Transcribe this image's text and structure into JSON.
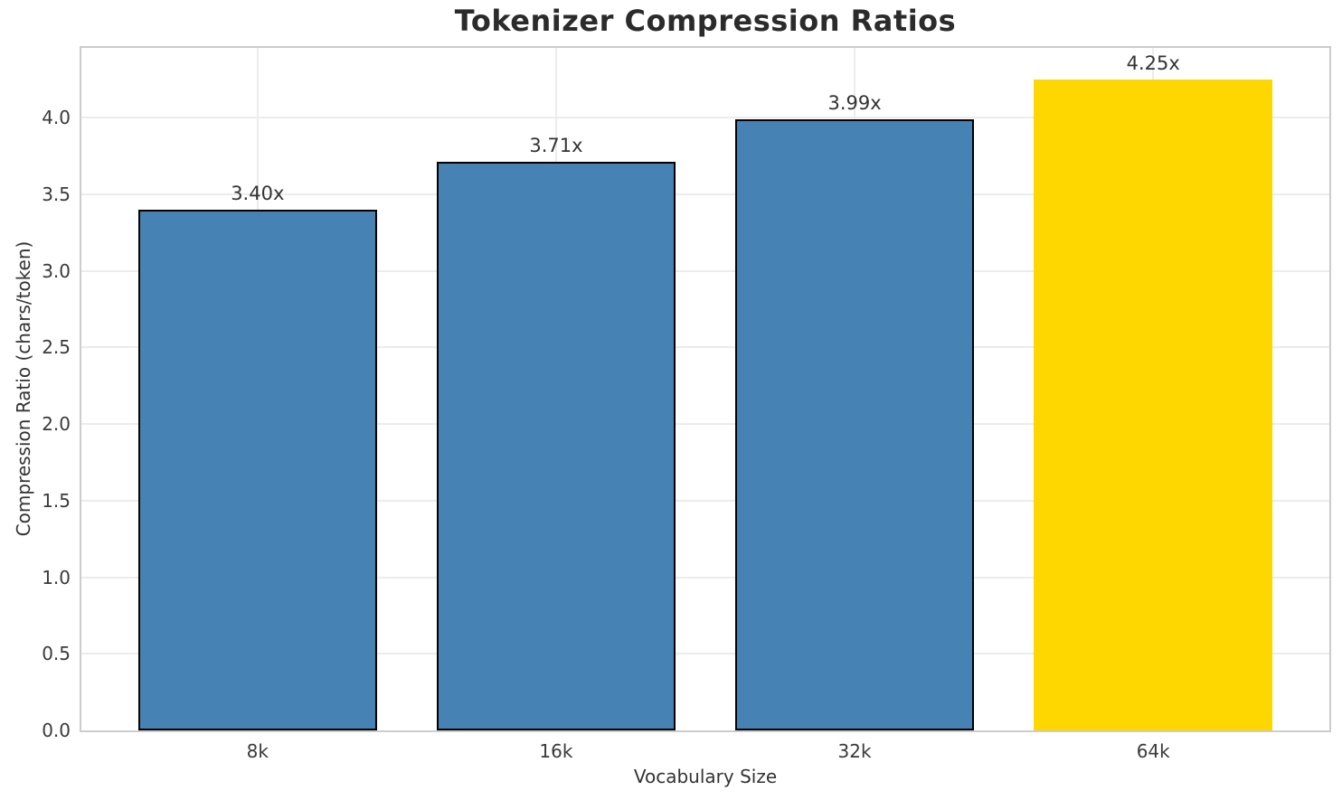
{
  "chart_data": {
    "type": "bar",
    "title": "Tokenizer Compression Ratios",
    "xlabel": "Vocabulary Size",
    "ylabel": "Compression Ratio (chars/token)",
    "categories": [
      "8k",
      "16k",
      "32k",
      "64k"
    ],
    "values": [
      3.4,
      3.71,
      3.99,
      4.25
    ],
    "bar_labels": [
      "3.40x",
      "3.71x",
      "3.99x",
      "4.25x"
    ],
    "bar_colors": [
      "#4682B4",
      "#4682B4",
      "#4682B4",
      "#FFD700"
    ],
    "bar_edge_colors": [
      "#000000",
      "#000000",
      "#000000",
      "none"
    ],
    "bar_width": 0.8,
    "ylim": [
      0,
      4.455
    ],
    "xlim": [
      -0.59,
      3.59
    ],
    "yticks": [
      0.0,
      0.5,
      1.0,
      1.5,
      2.0,
      2.5,
      3.0,
      3.5,
      4.0
    ],
    "ytick_labels": [
      "0.0",
      "0.5",
      "1.0",
      "1.5",
      "2.0",
      "2.5",
      "3.0",
      "3.5",
      "4.0"
    ],
    "grid": true,
    "legend": "none",
    "colors": {
      "grid": "#ececec",
      "spine": "#cccccc",
      "title_text": "#2b2b2b",
      "tick_text": "#3a3a3a",
      "label_text": "#333333",
      "background": "#ffffff"
    }
  }
}
